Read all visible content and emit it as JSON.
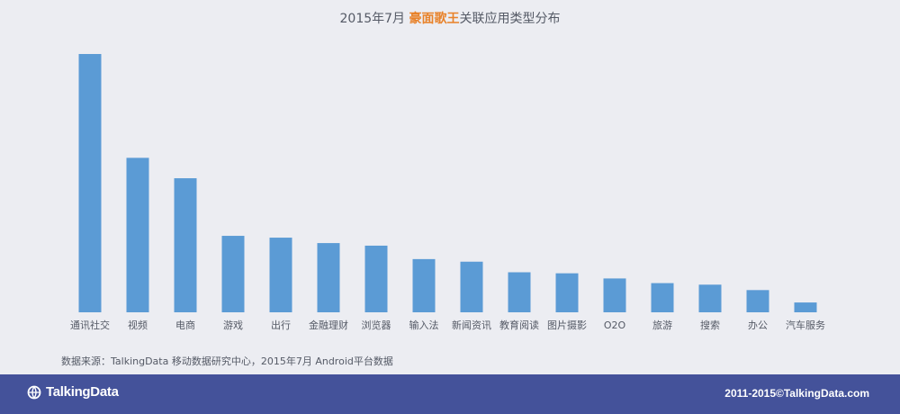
{
  "title": {
    "prefix": "2015年7月",
    "highlight": "豪面歌王",
    "suffix": "关联应用类型分布"
  },
  "colors": {
    "bar": "#5b9bd5",
    "highlight": "#e8822a",
    "footer": "#44529a"
  },
  "chart_data": {
    "type": "bar",
    "title": "2015年7月 豪面歌王关联应用类型分布",
    "xlabel": "",
    "ylabel": "",
    "categories": [
      "通讯社交",
      "视频",
      "电商",
      "游戏",
      "出行",
      "金融理财",
      "浏览器",
      "输入法",
      "新闻资讯",
      "教育阅读",
      "图片摄影",
      "O2O",
      "旅游",
      "搜索",
      "办公",
      "汽车服务"
    ],
    "values": [
      100,
      59.8,
      51.9,
      29.6,
      28.9,
      26.8,
      25.8,
      20.6,
      19.6,
      15.5,
      15.1,
      13.1,
      11.3,
      10.7,
      8.6,
      3.8
    ],
    "ylim": [
      0,
      100
    ],
    "grid": false,
    "legend": "none"
  },
  "source": "数据来源：TalkingData 移动数据研究中心，2015年7月 Android平台数据",
  "footer": {
    "logo_text": "TalkingData",
    "copyright": "2011-2015©TalkingData.com"
  }
}
